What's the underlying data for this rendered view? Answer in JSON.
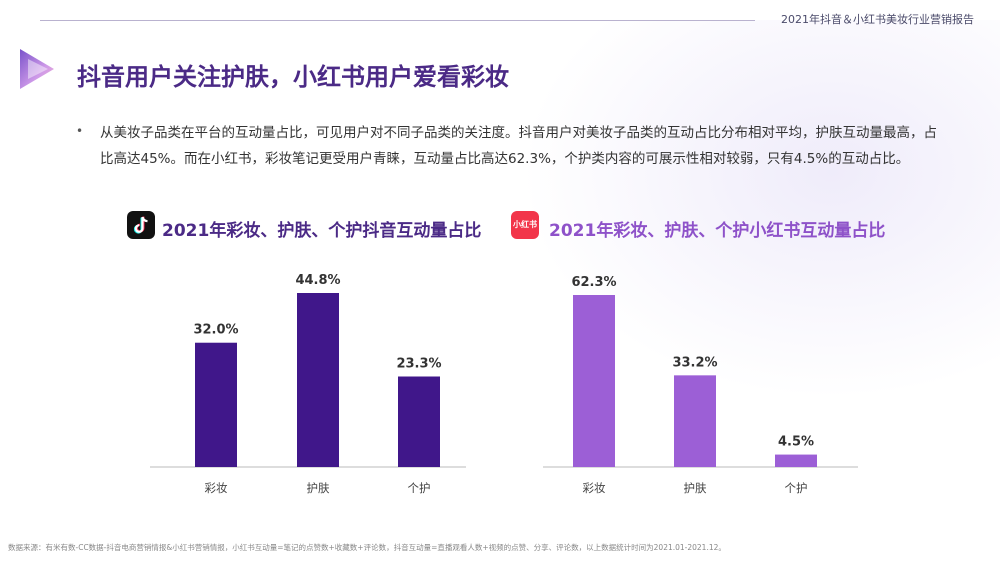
{
  "header": {
    "report_title": "2021年抖音＆小红书美妆行业营销报告"
  },
  "page_title": "抖音用户关注护肤，小红书用户爱看彩妆",
  "bullet": {
    "dot": "•",
    "text": "从美妆子品类在平台的互动量占比，可见用户对不同子品类的关注度。抖音用户对美妆子品类的互动占比分布相对平均，护肤互动量最高，占比高达45%。而在小红书，彩妆笔记更受用户青睐，互动量占比高达62.3%，个护类内容的可展示性相对较弱，只有4.5%的互动占比。"
  },
  "icons": {
    "douyin": "tiktok-logo-icon",
    "xiaohongshu": "xiaohongshu-logo-icon",
    "xhs_label": "小红书"
  },
  "colors": {
    "douyin_bar": "#40178a",
    "xhs_bar": "#9c5fd6",
    "title": "#4b2a86"
  },
  "chart_data": [
    {
      "type": "bar",
      "title": "2021年彩妆、护肤、个护抖音互动量占比",
      "categories": [
        "彩妆",
        "护肤",
        "个护"
      ],
      "values": [
        32.0,
        44.8,
        23.3
      ],
      "value_labels": [
        "32.0%",
        "44.8%",
        "23.3%"
      ],
      "ylim": [
        0,
        50
      ],
      "grid": false
    },
    {
      "type": "bar",
      "title": "2021年彩妆、护肤、个护小红书互动量占比",
      "categories": [
        "彩妆",
        "护肤",
        "个护"
      ],
      "values": [
        62.3,
        33.2,
        4.5
      ],
      "value_labels": [
        "62.3%",
        "33.2%",
        "4.5%"
      ],
      "ylim": [
        0,
        65
      ],
      "grid": false
    }
  ],
  "footer": "数据来源：有米有数-CC数据-抖音电商营销情报&小红书营销情报，小红书互动量=笔记的点赞数+收藏数+评论数，抖音互动量=直播观看人数+视频的点赞、分享、评论数，以上数据统计时间为2021.01-2021.12。"
}
